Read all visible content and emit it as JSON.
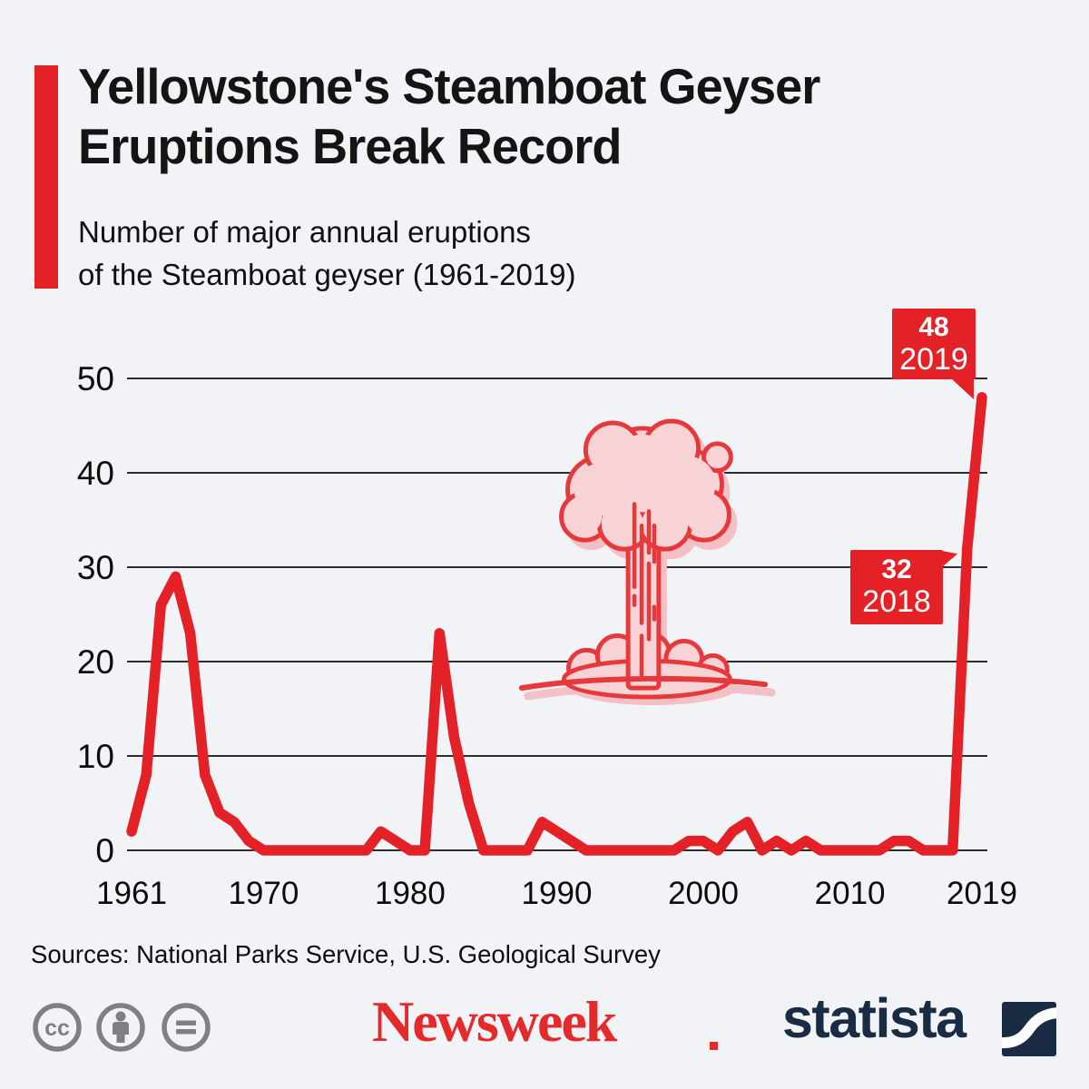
{
  "header": {
    "title": "Yellowstone's Steamboat Geyser\nEruptions Break Record",
    "subtitle": "Number of major annual eruptions\nof the Steamboat geyser (1961-2019)"
  },
  "chart_data": {
    "type": "line",
    "title": "Number of major annual eruptions of the Steamboat geyser (1961-2019)",
    "xlabel": "",
    "ylabel": "",
    "grid": true,
    "legend": "none",
    "line_color": "#e32127",
    "ylim": [
      0,
      50
    ],
    "y_ticks": [
      0,
      10,
      20,
      30,
      40,
      50
    ],
    "y_tick_labels": [
      "0",
      "10",
      "20",
      "30",
      "40",
      "50"
    ],
    "x_tick_years": [
      1961,
      1970,
      1980,
      1990,
      2000,
      2010,
      2019
    ],
    "x_tick_labels": [
      "1961",
      "1970",
      "1980",
      "1990",
      "2000",
      "2010",
      "2019"
    ],
    "years": [
      1961,
      1962,
      1963,
      1964,
      1965,
      1966,
      1967,
      1968,
      1969,
      1970,
      1971,
      1972,
      1973,
      1974,
      1975,
      1976,
      1977,
      1978,
      1979,
      1980,
      1981,
      1982,
      1983,
      1984,
      1985,
      1986,
      1987,
      1988,
      1989,
      1990,
      1991,
      1992,
      1993,
      1994,
      1995,
      1996,
      1997,
      1998,
      1999,
      2000,
      2001,
      2002,
      2003,
      2004,
      2005,
      2006,
      2007,
      2008,
      2009,
      2010,
      2011,
      2012,
      2013,
      2014,
      2015,
      2016,
      2017,
      2018,
      2019
    ],
    "values": [
      2,
      8,
      26,
      29,
      23,
      8,
      4,
      3,
      1,
      0,
      0,
      0,
      0,
      0,
      0,
      0,
      0,
      2,
      1,
      0,
      0,
      23,
      12,
      5,
      0,
      0,
      0,
      0,
      3,
      2,
      1,
      0,
      0,
      0,
      0,
      0,
      0,
      0,
      1,
      1,
      0,
      2,
      3,
      0,
      1,
      0,
      1,
      0,
      0,
      0,
      0,
      0,
      1,
      1,
      0,
      0,
      0,
      32,
      48
    ],
    "annotations": [
      {
        "value": "48",
        "year": "2019"
      },
      {
        "value": "32",
        "year": "2018"
      }
    ]
  },
  "callouts": {
    "c2019": {
      "value": "48",
      "year": "2019"
    },
    "c2018": {
      "value": "32",
      "year": "2018"
    }
  },
  "footer": {
    "sources": "Sources: National Parks Service, U.S. Geological Survey",
    "license_icons": [
      "cc-icon",
      "cc-attribution-icon",
      "cc-nd-icon"
    ],
    "newsweek_logo": "Newsweek",
    "statista_logo": "statista"
  },
  "colors": {
    "red": "#e32127",
    "navy": "#1a2b44",
    "background": "#f1f3f7",
    "illustration_pink": "#f8d3d6",
    "gridline": "#2e2e2e",
    "license_gray": "#7f8083"
  }
}
